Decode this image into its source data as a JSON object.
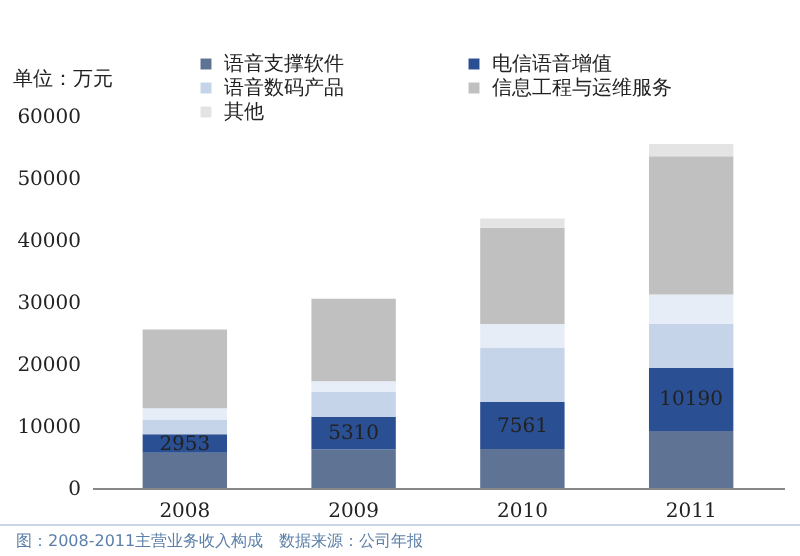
{
  "chart_data": {
    "type": "bar",
    "stacked": true,
    "ylabel": "单位：万元",
    "categories": [
      "2008",
      "2009",
      "2010",
      "2011"
    ],
    "ylim": [
      0,
      60000
    ],
    "yticks": [
      0,
      10000,
      20000,
      30000,
      40000,
      50000,
      60000
    ],
    "grid": false,
    "legend": "top",
    "series": [
      {
        "name": "语音支撑软件",
        "color": "#5f7394",
        "values": [
          5700,
          6200,
          6300,
          9200
        ]
      },
      {
        "name": "电信语音增值",
        "color": "#2a4f93",
        "values": [
          2953,
          5310,
          7561,
          10190
        ],
        "value_labels": [
          "2953",
          "5310",
          "7561",
          "10190"
        ]
      },
      {
        "name": "语音数码产品",
        "color": "#c6d4ea",
        "values": [
          2400,
          4000,
          8800,
          7100
        ]
      },
      {
        "color": "#e6edf7",
        "values": [
          1800,
          1700,
          3800,
          4700
        ]
      },
      {
        "name": "信息工程与运维服务",
        "color": "#c0c0c0",
        "values": [
          12700,
          13300,
          15500,
          22300
        ]
      },
      {
        "name": "其他",
        "color": "#e4e4e4",
        "values": [
          null,
          null,
          1500,
          2000
        ]
      }
    ],
    "annotations": [
      "图：2008-2011主营业务收入构成　数据来源：公司年报"
    ]
  }
}
